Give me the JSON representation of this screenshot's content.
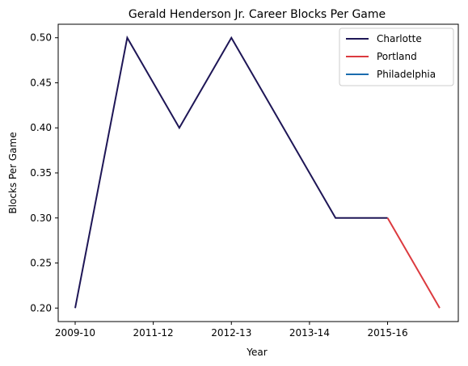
{
  "chart_data": {
    "type": "line",
    "title": "Gerald Henderson Jr. Career Blocks Per Game",
    "xlabel": "Year",
    "ylabel": "Blocks Per Game",
    "x_ticks": [
      "2009-10",
      "2011-12",
      "2012-13",
      "2013-14",
      "2015-16"
    ],
    "ylim": [
      0.185,
      0.515
    ],
    "y_ticks": [
      0.2,
      0.25,
      0.3,
      0.35,
      0.4,
      0.45,
      0.5
    ],
    "y_tick_labels": [
      "0.20",
      "0.25",
      "0.30",
      "0.35",
      "0.40",
      "0.45",
      "0.50"
    ],
    "grid": false,
    "legend_position": "top-right",
    "series": [
      {
        "name": "Charlotte",
        "color": "#1e1656",
        "x": [
          0,
          1,
          2,
          3,
          4,
          5,
          6
        ],
        "y": [
          0.2,
          0.5,
          0.4,
          0.5,
          0.4,
          0.3,
          0.3
        ]
      },
      {
        "name": "Portland",
        "color": "#dc3a3f",
        "x": [
          6,
          7
        ],
        "y": [
          0.3,
          0.2
        ]
      },
      {
        "name": "Philadelphia",
        "color": "#1a6cae",
        "x": [],
        "y": []
      }
    ]
  }
}
